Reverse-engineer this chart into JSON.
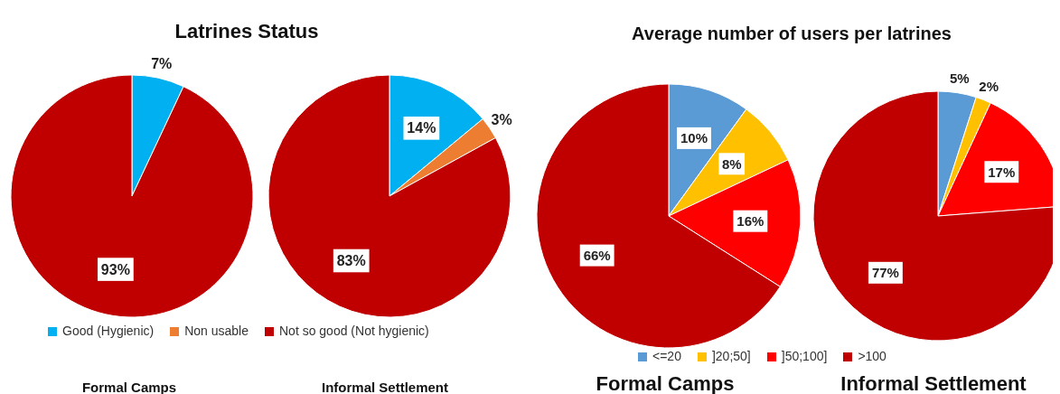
{
  "chart_data": [
    {
      "type": "pie",
      "title": "Latrines Status",
      "subtitle": "Formal Camps",
      "categories": [
        null,
        null
      ],
      "values": [
        7,
        93
      ],
      "colors": [
        "#00b0f0",
        "#c00000"
      ],
      "value_labels": [
        "7%",
        "93%"
      ]
    },
    {
      "type": "pie",
      "subtitle": "Informal Settlement",
      "categories": [
        "Good (Hygienic)",
        "Non usable",
        "Not so good (Not hygienic)"
      ],
      "values": [
        14,
        3,
        83
      ],
      "colors": [
        "#00b0f0",
        "#ed7d31",
        "#c00000"
      ],
      "value_labels": [
        "14%",
        "3%",
        "83%"
      ],
      "legend": "bottom"
    },
    {
      "type": "pie",
      "title": "Average number of users per latrines",
      "subtitle": "Formal Camps",
      "categories": [
        "<=20",
        "]20;50]",
        "]50;100]",
        ">100"
      ],
      "values": [
        10,
        8,
        16,
        66
      ],
      "colors": [
        "#5b9bd5",
        "#ffc000",
        "#ff0000",
        "#c00000"
      ],
      "value_labels": [
        "10%",
        "8%",
        "16%",
        "66%"
      ],
      "legend": "bottom"
    },
    {
      "type": "pie",
      "subtitle": "Informal Settlement",
      "categories": [
        null,
        null,
        null,
        null
      ],
      "values": [
        5,
        2,
        17,
        77
      ],
      "colors": [
        "#5b9bd5",
        "#ffc000",
        "#ff0000",
        "#c00000"
      ],
      "value_labels": [
        "5%",
        "2%",
        "17%",
        "77%"
      ]
    }
  ]
}
